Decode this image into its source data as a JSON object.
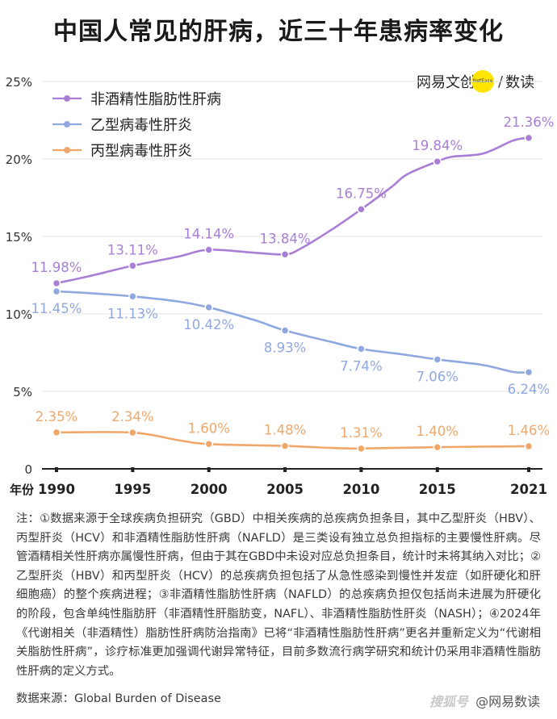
{
  "title": "中国人常见的肝病，近三十年患病率变化",
  "brand": {
    "left": "网易文创",
    "logo_text": "NetEase",
    "slash": "/",
    "right": "数读"
  },
  "colors": {
    "nafld": "#a97fd6",
    "hbv": "#8fa8e0",
    "hcv": "#f0a86a",
    "axis": "#222222",
    "grid": "#e6e6e6"
  },
  "chart_data": {
    "type": "line",
    "x": [
      1990,
      1995,
      2000,
      2005,
      2010,
      2015,
      2021
    ],
    "xlabel": "年份",
    "ylabel": "",
    "ylim": [
      0,
      25
    ],
    "yticks": [
      "0",
      "5%",
      "10%",
      "15%",
      "20%",
      "25%"
    ],
    "ytick_values": [
      0,
      5,
      10,
      15,
      20,
      25
    ],
    "grid": true,
    "legend": "top-left",
    "series": [
      {
        "name": "非酒精性脂肪性肝病",
        "key": "nafld",
        "values": [
          11.98,
          13.11,
          14.14,
          13.84,
          16.75,
          19.84,
          21.36
        ],
        "labels": [
          "11.98%",
          "13.11%",
          "14.14%",
          "13.84%",
          "16.75%",
          "19.84%",
          "21.36%"
        ],
        "curve_x": [
          1990,
          1992,
          1995,
          1998,
          2000,
          2003,
          2005,
          2006,
          2008,
          2010,
          2012,
          2013,
          2015,
          2016,
          2018,
          2020,
          2021
        ],
        "curve_y": [
          11.98,
          12.4,
          13.11,
          13.7,
          14.14,
          13.95,
          13.84,
          14.2,
          15.4,
          16.75,
          18.2,
          19.0,
          19.84,
          20.15,
          20.35,
          21.2,
          21.36
        ]
      },
      {
        "name": "乙型病毒性肝炎",
        "key": "hbv",
        "values": [
          11.45,
          11.13,
          10.42,
          8.93,
          7.74,
          7.06,
          6.24
        ],
        "labels": [
          "11.45%",
          "11.13%",
          "10.42%",
          "8.93%",
          "7.74%",
          "7.06%",
          "6.24%"
        ],
        "curve_x": [
          1990,
          1992,
          1995,
          1998,
          2000,
          2003,
          2005,
          2008,
          2010,
          2013,
          2015,
          2018,
          2020,
          2021
        ],
        "curve_y": [
          11.45,
          11.35,
          11.13,
          10.8,
          10.42,
          9.6,
          8.93,
          8.2,
          7.74,
          7.35,
          7.06,
          6.7,
          6.25,
          6.24
        ]
      },
      {
        "name": "丙型病毒性肝炎",
        "key": "hcv",
        "values": [
          2.35,
          2.34,
          1.6,
          1.48,
          1.31,
          1.4,
          1.46
        ],
        "labels": [
          "2.35%",
          "2.34%",
          "1.60%",
          "1.48%",
          "1.31%",
          "1.40%",
          "1.46%"
        ],
        "curve_x": [
          1990,
          1995,
          1998,
          2000,
          2005,
          2008,
          2010,
          2015,
          2021
        ],
        "curve_y": [
          2.35,
          2.34,
          1.85,
          1.6,
          1.48,
          1.35,
          1.31,
          1.4,
          1.46
        ]
      }
    ]
  },
  "notes": "注：①数据来源于全球疾病负担研究（GBD）中相关疾病的总疾病负担条目，其中乙型肝炎（HBV）、丙型肝炎（HCV）和非酒精性脂肪性肝病（NAFLD）是三类设有独立总负担指标的主要慢性肝病。尽管酒精相关性肝病亦属慢性肝病，但由于其在GBD中未设对应总负担条目，统计时未将其纳入对比；②乙型肝炎（HBV）和丙型肝炎（HCV）的总疾病负担包括了从急性感染到慢性并发症（如肝硬化和肝细胞癌）的整个疾病进程；③非酒精性脂肪性肝病（NAFLD）的总疾病负担仅包括尚未进展为肝硬化的阶段，包含单纯性脂肪肝（非酒精性肝脂肪变，NAFL）、非酒精性脂肪性肝炎（NASH）；④2024年《代谢相关（非酒精性）脂肪性肝病防治指南》已将“非酒精性脂肪性肝病”更名并重新定义为“代谢相关脂肪性肝病”，诊疗标准更加强调代谢异常特征，目前多数流行病学研究和统计仍采用非酒精性脂肪性肝病的定义方式。",
  "source": "数据来源：Global Burden of Disease",
  "watermark": {
    "logo": "搜狐号",
    "text": "@网易数读"
  }
}
